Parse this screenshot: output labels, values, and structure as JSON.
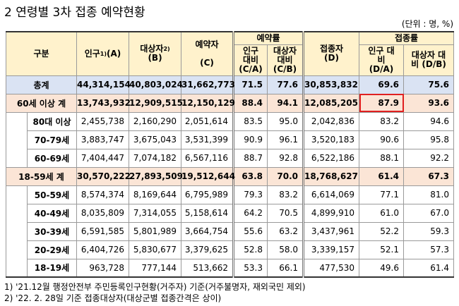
{
  "title": "2 연령별 3차 접종 예약현황",
  "unit": "(단위 : 명, %)",
  "headers": {
    "category": "구분",
    "population": "인구",
    "population_sup": "1)",
    "population_suffix": "(A)",
    "target": "대상자",
    "target_sup": "2)",
    "target_suffix": "(B)",
    "reserved": "예약자",
    "reserved_suffix": "(C)",
    "reservation_rate": "예약률",
    "pop_ratio_c": "인구 대비 (C/A)",
    "target_ratio_c": "대상자 대비 (C/B)",
    "vaccinated": "접종자",
    "vaccinated_suffix": "(D)",
    "vaccination_rate": "접종률",
    "pop_ratio_d": "인구 대비 (D/A)",
    "target_ratio_d": "대상자 대비 (D/B)"
  },
  "rows": [
    {
      "label": "총계",
      "pop": "44,314,154",
      "target": "40,803,024",
      "reserved": "31,662,773",
      "c_a": "71.5",
      "c_b": "77.6",
      "vac": "30,853,832",
      "d_a": "69.6",
      "d_b": "75.6"
    },
    {
      "label": "60세 이상 계",
      "pop": "13,743,932",
      "target": "12,909,515",
      "reserved": "12,150,129",
      "c_a": "88.4",
      "c_b": "94.1",
      "vac": "12,085,205",
      "d_a": "87.9",
      "d_b": "93.6"
    },
    {
      "label": "80대 이상",
      "pop": "2,455,738",
      "target": "2,160,290",
      "reserved": "2,051,614",
      "c_a": "83.5",
      "c_b": "95.0",
      "vac": "2,042,836",
      "d_a": "83.2",
      "d_b": "94.6"
    },
    {
      "label": "70-79세",
      "pop": "3,883,747",
      "target": "3,675,043",
      "reserved": "3,531,399",
      "c_a": "90.9",
      "c_b": "96.1",
      "vac": "3,520,183",
      "d_a": "90.6",
      "d_b": "95.8"
    },
    {
      "label": "60-69세",
      "pop": "7,404,447",
      "target": "7,074,182",
      "reserved": "6,567,116",
      "c_a": "88.7",
      "c_b": "92.8",
      "vac": "6,522,186",
      "d_a": "88.1",
      "d_b": "92.2"
    },
    {
      "label": "18-59세 계",
      "pop": "30,570,222",
      "target": "27,893,509",
      "reserved": "19,512,644",
      "c_a": "63.8",
      "c_b": "70.0",
      "vac": "18,768,627",
      "d_a": "61.4",
      "d_b": "67.3"
    },
    {
      "label": "50-59세",
      "pop": "8,574,374",
      "target": "8,169,644",
      "reserved": "6,795,989",
      "c_a": "79.3",
      "c_b": "83.2",
      "vac": "6,614,069",
      "d_a": "77.1",
      "d_b": "81.0"
    },
    {
      "label": "40-49세",
      "pop": "8,035,809",
      "target": "7,314,055",
      "reserved": "5,158,614",
      "c_a": "64.2",
      "c_b": "70.5",
      "vac": "4,899,910",
      "d_a": "61.0",
      "d_b": "67.0"
    },
    {
      "label": "30-39세",
      "pop": "6,591,585",
      "target": "5,801,989",
      "reserved": "3,664,754",
      "c_a": "55.6",
      "c_b": "63.2",
      "vac": "3,437,961",
      "d_a": "52.2",
      "d_b": "59.3"
    },
    {
      "label": "20-29세",
      "pop": "6,404,726",
      "target": "5,830,677",
      "reserved": "3,379,625",
      "c_a": "52.8",
      "c_b": "58.0",
      "vac": "3,339,157",
      "d_a": "52.1",
      "d_b": "57.3"
    },
    {
      "label": "18-19세",
      "pop": "963,728",
      "target": "777,144",
      "reserved": "513,662",
      "c_a": "53.3",
      "c_b": "66.1",
      "vac": "477,530",
      "d_a": "49.6",
      "d_b": "61.4"
    }
  ],
  "footnotes": [
    "1) '21.12월 행정안전부 주민등록인구현황(거주자) 기준(거주불명자, 재외국민 제외)",
    "2) '22. 2. 28일 기준 접종대상자(대상군별 접종간격은 상이)"
  ],
  "highlight_color": "#e02020"
}
